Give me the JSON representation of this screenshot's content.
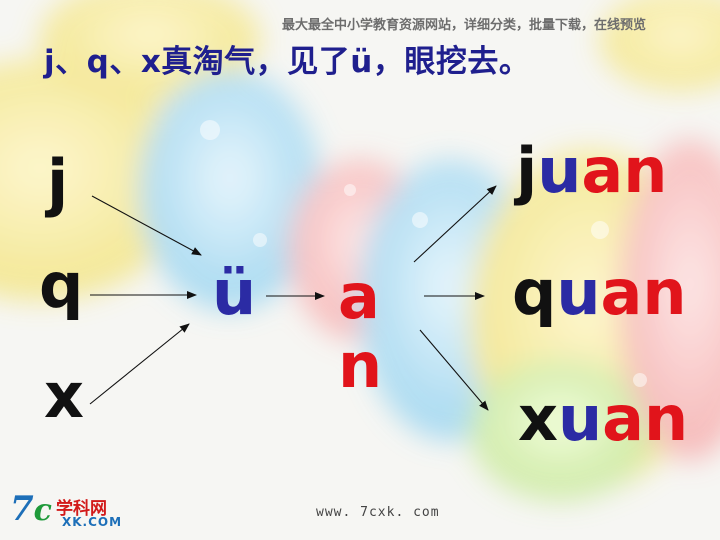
{
  "watermark": "最大最全中小学教育资源网站，详细分类，批量下载，在线预览",
  "title": "j、q、x真淘气，见了ü，眼挖去。",
  "initials": {
    "j": "j",
    "q": "q",
    "x": "x"
  },
  "u_umlaut": "ü",
  "finals": {
    "a": "a",
    "n": "n"
  },
  "results": [
    {
      "initial": "j",
      "u": "u",
      "an": "an"
    },
    {
      "initial": "q",
      "u": "u",
      "an": "an"
    },
    {
      "initial": "x",
      "u": "u",
      "an": "an"
    }
  ],
  "footer_url": "www. 7cxk. com",
  "logo": {
    "mark_7": "7",
    "mark_c": "c",
    "name_cn": "学科网",
    "name_en": "XK.COM"
  },
  "colors": {
    "title": "#1f1f8e",
    "blue_letter": "#2b2ba4",
    "red_letter": "#e1141b",
    "black_letter": "#111111"
  }
}
